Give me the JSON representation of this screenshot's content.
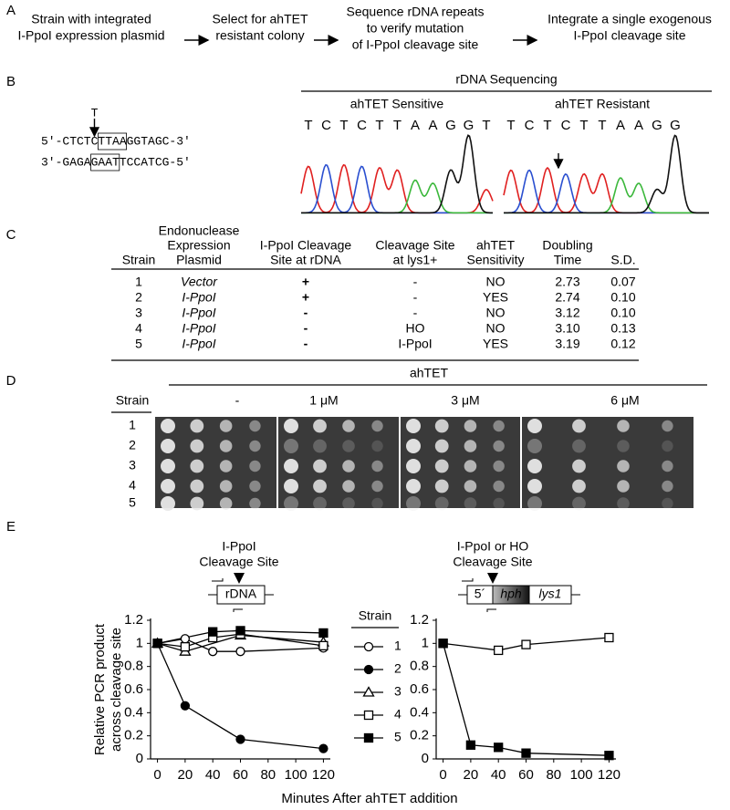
{
  "panel_labels": [
    "A",
    "B",
    "C",
    "D",
    "E"
  ],
  "panel_a": {
    "steps": [
      [
        "Strain with integrated",
        "I-PpoI expression plasmid"
      ],
      [
        "Select for ahTET",
        "resistant colony"
      ],
      [
        "Sequence rDNA repeats",
        "to verify mutation",
        "of I-PpoI cleavage site"
      ],
      [
        "Integrate a single exogenous",
        "I-PpoI cleavage site"
      ]
    ]
  },
  "panel_b": {
    "mutation": "T",
    "top_strand": "5'-CTCTCTTAAGGTAGC-3'",
    "bottom_strand": "3'-GAGAGAATTCCATCG-5'",
    "title": "rDNA Sequencing",
    "sensitive_label": "ahTET Sensitive",
    "resistant_label": "ahTET Resistant",
    "sensitive_bases": [
      "T",
      "C",
      "T",
      "C",
      "T",
      "T",
      "A",
      "A",
      "G",
      "G",
      "T"
    ],
    "resistant_bases": [
      "T",
      "C",
      "T",
      "C",
      "T",
      "T",
      "A",
      "A",
      "G",
      "G"
    ]
  },
  "panel_c": {
    "header": [
      [
        "Strain"
      ],
      [
        "Endonuclease",
        "Expression",
        "Plasmid"
      ],
      [
        "I-PpoI Cleavage",
        "Site at rDNA"
      ],
      [
        "Cleavage Site",
        "at lys1+"
      ],
      [
        "ahTET",
        "Sensitivity"
      ],
      [
        "Doubling",
        "Time"
      ],
      [
        "S.D."
      ]
    ],
    "rows": [
      [
        "1",
        "Vector",
        "+",
        "-",
        "NO",
        "2.73",
        "0.07"
      ],
      [
        "2",
        "I-PpoI",
        "+",
        "-",
        "YES",
        "2.74",
        "0.10"
      ],
      [
        "3",
        "I-PpoI",
        "-",
        "-",
        "NO",
        "3.12",
        "0.10"
      ],
      [
        "4",
        "I-PpoI",
        "-",
        "HO",
        "NO",
        "3.10",
        "0.13"
      ],
      [
        "5",
        "I-PpoI",
        "-",
        "I-PpoI",
        "YES",
        "3.19",
        "0.12"
      ]
    ]
  },
  "panel_d": {
    "title": "ahTET",
    "strain_label": "Strain",
    "strains": [
      "1",
      "2",
      "3",
      "4",
      "5"
    ],
    "conditions": [
      "-",
      "1 μM",
      "3 μM",
      "6 μM"
    ]
  },
  "panel_e": {
    "legend_title": "Strain",
    "y_label": [
      "Relative PCR product",
      "across cleavage site"
    ],
    "x_label": "Minutes After ahTET addition",
    "diagrams": [
      {
        "title": [
          "I-PpoI",
          "Cleavage Site"
        ],
        "parts": [
          "rDNA"
        ]
      },
      {
        "title": [
          "I-PpoI or HO",
          "Cleavage Site"
        ],
        "parts": [
          "5´",
          "hph",
          "lys1"
        ]
      }
    ]
  },
  "chart_data": [
    {
      "type": "line",
      "xlim": [
        -5,
        125
      ],
      "ylim": [
        0,
        1.2
      ],
      "xticks": [
        0,
        20,
        40,
        60,
        80,
        100,
        120
      ],
      "yticks": [
        0,
        0.2,
        0.4,
        0.6,
        0.8,
        1,
        1.2
      ],
      "series": [
        {
          "name": "1",
          "color": "#000000",
          "marker": "circle",
          "filled": false,
          "x": [
            0,
            20,
            40,
            60,
            120
          ],
          "values": [
            1,
            1.04,
            0.93,
            0.93,
            0.96
          ]
        },
        {
          "name": "2",
          "color": "#000000",
          "marker": "circle",
          "filled": true,
          "x": [
            0,
            20,
            60,
            120
          ],
          "values": [
            1,
            0.46,
            0.17,
            0.09
          ]
        },
        {
          "name": "3",
          "color": "#000000",
          "marker": "triangle",
          "filled": false,
          "x": [
            0,
            20,
            60,
            120
          ],
          "values": [
            1,
            0.93,
            1.07,
            1.01
          ]
        },
        {
          "name": "4",
          "color": "#000000",
          "marker": "square",
          "filled": false,
          "x": [
            0,
            20,
            40,
            60,
            120
          ],
          "values": [
            1,
            0.97,
            1.05,
            1.08,
            0.98
          ]
        },
        {
          "name": "5",
          "color": "#000000",
          "marker": "square",
          "filled": true,
          "x": [
            0,
            40,
            60,
            120
          ],
          "values": [
            1,
            1.1,
            1.11,
            1.09
          ]
        }
      ]
    },
    {
      "type": "line",
      "xlim": [
        -5,
        125
      ],
      "ylim": [
        0,
        1.2
      ],
      "xticks": [
        0,
        20,
        40,
        60,
        80,
        100,
        120
      ],
      "yticks": [
        0,
        0.2,
        0.4,
        0.6,
        0.8,
        1,
        1.2
      ],
      "series": [
        {
          "color": "#000000",
          "marker": "square",
          "filled": false,
          "x": [
            0,
            40,
            60,
            120
          ],
          "values": [
            1,
            0.94,
            0.99,
            1.05
          ]
        },
        {
          "color": "#000000",
          "marker": "square",
          "filled": true,
          "x": [
            0,
            20,
            40,
            60,
            120
          ],
          "values": [
            1,
            0.12,
            0.1,
            0.05,
            0.03
          ]
        }
      ]
    }
  ]
}
